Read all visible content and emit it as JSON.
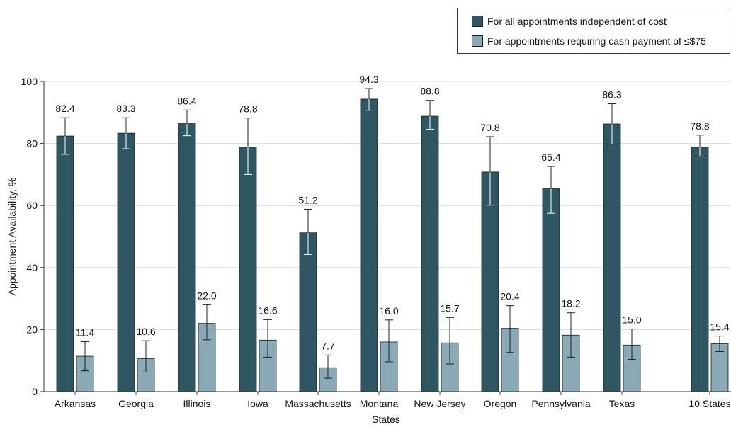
{
  "chart_data": {
    "type": "bar",
    "xlabel": "States",
    "ylabel": "Appointment Availability, %",
    "ylim": [
      0,
      100
    ],
    "yticks": [
      0,
      20,
      40,
      60,
      80,
      100
    ],
    "grid": true,
    "legend_position": "top-right",
    "categories": [
      "Arkansas",
      "Georgia",
      "Illinois",
      "Iowa",
      "Massachusetts",
      "Montana",
      "New Jersey",
      "Oregon",
      "Pennsylvania",
      "Texas",
      "10 States"
    ],
    "series": [
      {
        "name": "For all appointments independent of cost",
        "color": "#2f5663",
        "values": [
          82.4,
          83.3,
          86.4,
          78.8,
          51.2,
          94.3,
          88.8,
          70.8,
          65.4,
          86.3,
          78.8
        ],
        "error_low": [
          76.5,
          78.3,
          82.5,
          70.0,
          44.2,
          90.7,
          84.6,
          60.1,
          57.5,
          79.8,
          75.9
        ],
        "error_high": [
          88.3,
          88.3,
          90.8,
          88.2,
          58.8,
          97.7,
          93.9,
          82.2,
          72.6,
          92.8,
          82.7
        ]
      },
      {
        "name": "For appointments requiring cash payment of ≤$75",
        "color": "#8aaab8",
        "values": [
          11.4,
          10.6,
          22.0,
          16.6,
          7.7,
          16.0,
          15.7,
          20.4,
          18.2,
          15.0,
          15.4
        ],
        "error_low": [
          6.7,
          6.3,
          16.7,
          11.1,
          4.3,
          9.6,
          8.9,
          12.6,
          11.1,
          10.4,
          12.9
        ],
        "error_high": [
          16.1,
          16.4,
          28.0,
          23.2,
          11.8,
          23.1,
          23.9,
          27.7,
          25.4,
          20.2,
          17.9
        ]
      }
    ]
  }
}
